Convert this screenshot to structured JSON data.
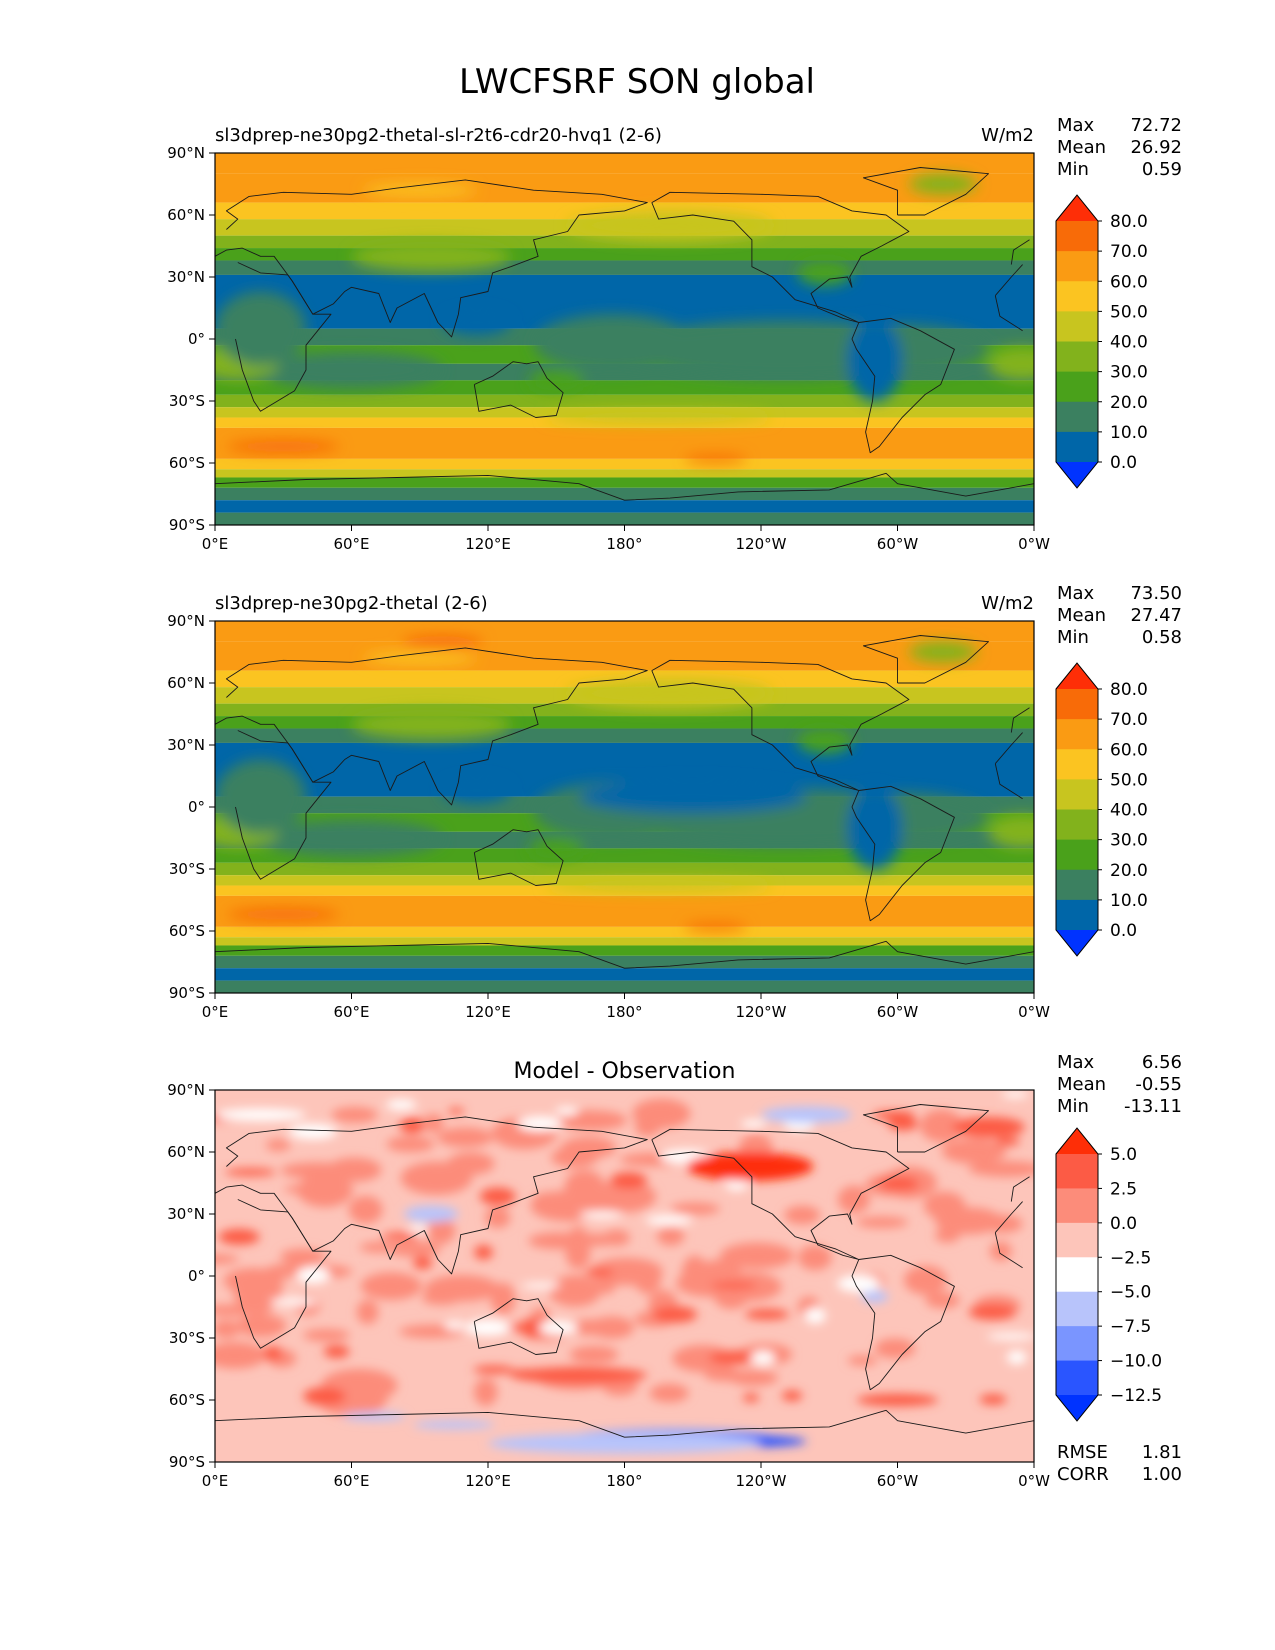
{
  "title": "LWCFSRF SON global",
  "lat_ticks": [
    "90°N",
    "60°N",
    "30°N",
    "0°",
    "30°S",
    "60°S",
    "90°S"
  ],
  "lon_ticks": [
    "0°E",
    "60°E",
    "120°E",
    "180°",
    "120°W",
    "60°W",
    "0°W"
  ],
  "stat_labels": {
    "max": "Max",
    "mean": "Mean",
    "min": "Min",
    "rmse": "RMSE",
    "corr": "CORR"
  },
  "field_levels": [
    "0.0",
    "10.0",
    "20.0",
    "30.0",
    "40.0",
    "50.0",
    "60.0",
    "70.0",
    "80.0"
  ],
  "field_colors": [
    "#0033ff",
    "#0066a8",
    "#3b8060",
    "#4aa11b",
    "#82b21c",
    "#c8c51f",
    "#fbc421",
    "#fa9b13",
    "#f86b08",
    "#fe2e07"
  ],
  "diff_levels": [
    "5.0",
    "2.5",
    "0.0",
    "−2.5",
    "−5.0",
    "−7.5",
    "−10.0",
    "−12.5"
  ],
  "diff_colors": [
    "#0033ff",
    "#2a55ff",
    "#7a95ff",
    "#b8c4fb",
    "#ffffff",
    "#fdc5ba",
    "#fc8c7a",
    "#fc5b45",
    "#fe2e07"
  ],
  "chart_data": [
    {
      "type": "heatmap",
      "subtitle": "sl3dprep-ne30pg2-thetal-sl-r2t6-cdr20-hvq1 (2-6)",
      "units": "W/m2",
      "stats": {
        "max": "72.72",
        "mean": "26.92",
        "min": "0.59"
      },
      "x_range": [
        0,
        360
      ],
      "y_range": [
        -90,
        90
      ],
      "colorbar": "field"
    },
    {
      "type": "heatmap",
      "subtitle": "sl3dprep-ne30pg2-thetal (2-6)",
      "units": "W/m2",
      "stats": {
        "max": "73.50",
        "mean": "27.47",
        "min": "0.58"
      },
      "x_range": [
        0,
        360
      ],
      "y_range": [
        -90,
        90
      ],
      "colorbar": "field"
    },
    {
      "type": "heatmap",
      "subtitle": "Model - Observation",
      "stats": {
        "max": "6.56",
        "mean": "-0.55",
        "min": "-13.11",
        "rmse": "1.81",
        "corr": "1.00"
      },
      "x_range": [
        0,
        360
      ],
      "y_range": [
        -90,
        90
      ],
      "colorbar": "diff"
    }
  ]
}
